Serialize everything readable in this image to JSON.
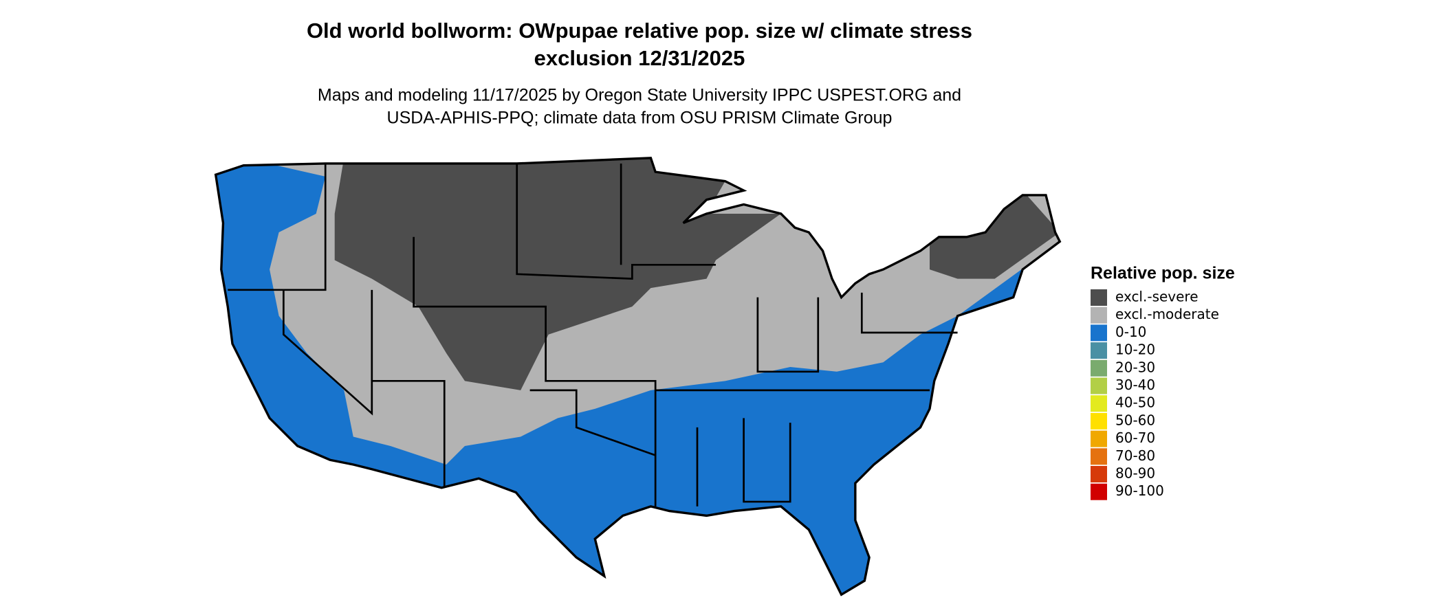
{
  "header": {
    "title_lines": [
      "Old world bollworm: OWpupae relative pop. size w/ climate stress",
      "exclusion 12/31/2025"
    ],
    "subtitle_lines": [
      "Maps and modeling 11/17/2025 by Oregon State University IPPC USPEST.ORG and",
      "USDA-APHIS-PPQ; climate data from OSU PRISM Climate Group"
    ]
  },
  "legend": {
    "title": "Relative pop. size",
    "items": [
      {
        "label": "excl.-severe",
        "color": "#4d4d4d"
      },
      {
        "label": "excl.-moderate",
        "color": "#b3b3b3"
      },
      {
        "label": "0-10",
        "color": "#1874cd"
      },
      {
        "label": "10-20",
        "color": "#4a90a4"
      },
      {
        "label": "20-30",
        "color": "#7aab6e"
      },
      {
        "label": "30-40",
        "color": "#b2cf46"
      },
      {
        "label": "40-50",
        "color": "#e3ea1e"
      },
      {
        "label": "50-60",
        "color": "#ffe000"
      },
      {
        "label": "60-70",
        "color": "#f0a800"
      },
      {
        "label": "70-80",
        "color": "#e57210"
      },
      {
        "label": "80-90",
        "color": "#d63a0a"
      },
      {
        "label": "90-100",
        "color": "#d10000"
      }
    ]
  }
}
